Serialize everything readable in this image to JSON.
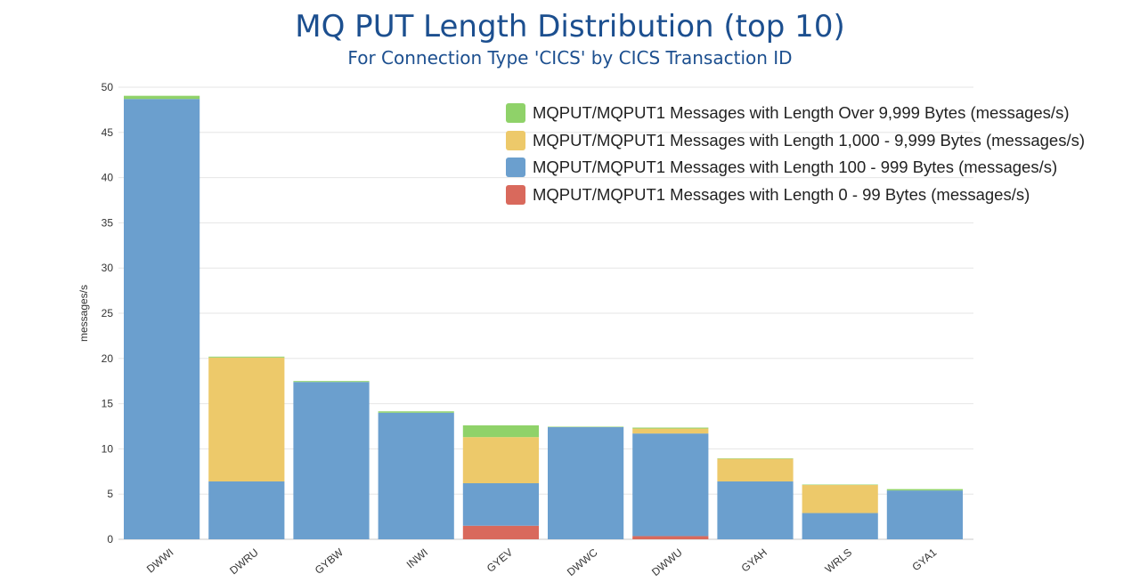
{
  "chart_data": {
    "type": "bar",
    "stacked": true,
    "title": "MQ PUT Length Distribution (top 10)",
    "subtitle": "For Connection Type 'CICS' by CICS Transaction ID",
    "xlabel": "",
    "ylabel": "messages/s",
    "ylim": [
      0,
      50
    ],
    "yticks": [
      0,
      5,
      10,
      15,
      20,
      25,
      30,
      35,
      40,
      45,
      50
    ],
    "grid": true,
    "legend_position": "top-right",
    "categories": [
      "DWWI",
      "DWRU",
      "GYBW",
      "INWI",
      "GYEV",
      "DWWC",
      "DWWU",
      "GYAH",
      "WRLS",
      "GYA1"
    ],
    "series": [
      {
        "name": "MQPUT/MQPUT1 Messages with Length 0 - 99 Bytes (messages/s)",
        "color": "#d9695c",
        "values": [
          0,
          0,
          0,
          0,
          1.5,
          0,
          0.35,
          0,
          0,
          0
        ]
      },
      {
        "name": "MQPUT/MQPUT1 Messages with Length 100 - 999 Bytes (messages/s)",
        "color": "#6b9fce",
        "values": [
          48.7,
          6.4,
          17.4,
          14.0,
          4.7,
          12.4,
          11.35,
          6.4,
          2.9,
          5.4
        ]
      },
      {
        "name": "MQPUT/MQPUT1 Messages with Length 1,000 - 9,999 Bytes (messages/s)",
        "color": "#edc96a",
        "values": [
          0,
          13.7,
          0,
          0,
          5.1,
          0,
          0.55,
          2.5,
          3.1,
          0
        ]
      },
      {
        "name": "MQPUT/MQPUT1 Messages with Length Over 9,999 Bytes (messages/s)",
        "color": "#8fd269",
        "values": [
          0.35,
          0.1,
          0.1,
          0.15,
          1.3,
          0.05,
          0.1,
          0.05,
          0.05,
          0.15
        ]
      }
    ]
  }
}
